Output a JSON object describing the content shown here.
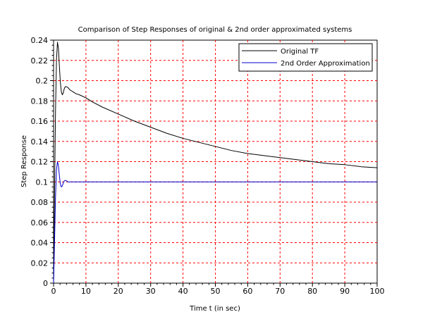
{
  "chart_data": {
    "type": "line",
    "title": "Comparison of Step Responses of original & 2nd order approximated systems",
    "xlabel": "Time t (in sec)",
    "ylabel": "Step Response",
    "xlim": [
      0,
      100
    ],
    "ylim": [
      0,
      0.24
    ],
    "xticks": [
      "0",
      "10",
      "20",
      "30",
      "40",
      "50",
      "60",
      "70",
      "80",
      "90",
      "100"
    ],
    "yticks": [
      "0",
      "0.02",
      "0.04",
      "0.06",
      "0.08",
      "0.1",
      "0.12",
      "0.14",
      "0.16",
      "0.18",
      "0.2",
      "0.22",
      "0.24"
    ],
    "grid": true,
    "grid_color": "#ff0000",
    "legend_position": "top-right",
    "series": [
      {
        "name": "Original TF",
        "color": "#000000",
        "x": [
          0,
          0.3,
          0.6,
          0.9,
          1.2,
          1.5,
          1.8,
          2.1,
          2.4,
          2.7,
          3.0,
          3.3,
          3.6,
          4.0,
          4.5,
          5.0,
          5.5,
          6,
          7,
          8,
          10,
          12,
          15,
          20,
          25,
          30,
          35,
          40,
          45,
          50,
          55,
          60,
          65,
          70,
          75,
          80,
          85,
          90,
          95,
          100
        ],
        "y": [
          0,
          0.09,
          0.17,
          0.22,
          0.238,
          0.232,
          0.214,
          0.198,
          0.189,
          0.186,
          0.188,
          0.192,
          0.194,
          0.194,
          0.193,
          0.191,
          0.19,
          0.189,
          0.187,
          0.186,
          0.183,
          0.179,
          0.174,
          0.167,
          0.16,
          0.154,
          0.148,
          0.143,
          0.139,
          0.135,
          0.131,
          0.128,
          0.126,
          0.124,
          0.122,
          0.12,
          0.118,
          0.117,
          0.115,
          0.114
        ]
      },
      {
        "name": "2nd Order Approximation",
        "color": "#0000cc",
        "x": [
          0,
          0.3,
          0.6,
          0.9,
          1.2,
          1.5,
          1.8,
          2.1,
          2.4,
          2.7,
          3.0,
          3.3,
          3.6,
          4.0,
          4.5,
          5,
          6,
          7,
          8,
          10,
          100
        ],
        "y": [
          0,
          0.04,
          0.085,
          0.112,
          0.12,
          0.116,
          0.106,
          0.098,
          0.095,
          0.096,
          0.099,
          0.101,
          0.1015,
          0.101,
          0.1,
          0.1,
          0.1,
          0.1,
          0.1,
          0.1,
          0.1
        ]
      }
    ]
  }
}
